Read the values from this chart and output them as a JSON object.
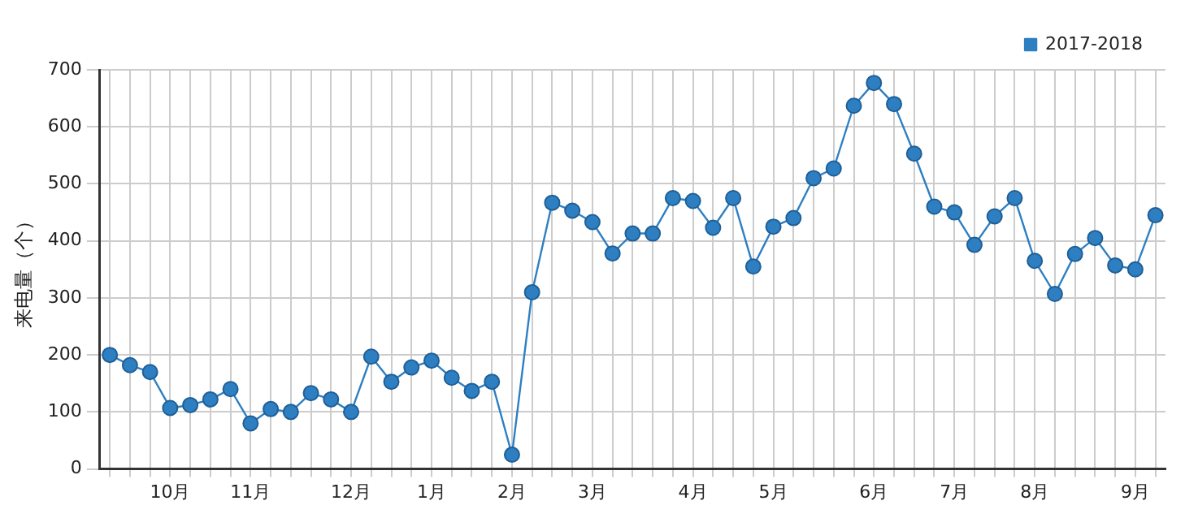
{
  "chart_data": {
    "type": "line",
    "ylabel": "来电量（个）",
    "categories": [
      null,
      null,
      null,
      "10月",
      null,
      null,
      null,
      "11月",
      null,
      null,
      null,
      null,
      "12月",
      null,
      null,
      null,
      "1月",
      null,
      null,
      null,
      "2月",
      null,
      null,
      null,
      "3月",
      null,
      null,
      null,
      null,
      "4月",
      null,
      null,
      null,
      "5月",
      null,
      null,
      null,
      null,
      "6月",
      null,
      null,
      null,
      "7月",
      null,
      null,
      null,
      "8月",
      null,
      null,
      null,
      null,
      "9月",
      null
    ],
    "series": [
      {
        "name": "2017-2018",
        "color": "#2e7fc2",
        "values": [
          200,
          182,
          170,
          107,
          112,
          122,
          140,
          80,
          105,
          100,
          133,
          122,
          100,
          197,
          153,
          178,
          190,
          160,
          137,
          153,
          25,
          310,
          467,
          453,
          433,
          378,
          413,
          413,
          475,
          470,
          423,
          475,
          355,
          425,
          440,
          510,
          527,
          637,
          677,
          640,
          553,
          460,
          450,
          393,
          443,
          475,
          365,
          307,
          377,
          405,
          357,
          350,
          445
        ]
      }
    ],
    "ylim": [
      0,
      700
    ],
    "yticks": [
      0,
      100,
      200,
      300,
      400,
      500,
      600,
      700
    ],
    "grid": true,
    "legend": "top right",
    "marker": "circle",
    "line_style": "solid"
  }
}
